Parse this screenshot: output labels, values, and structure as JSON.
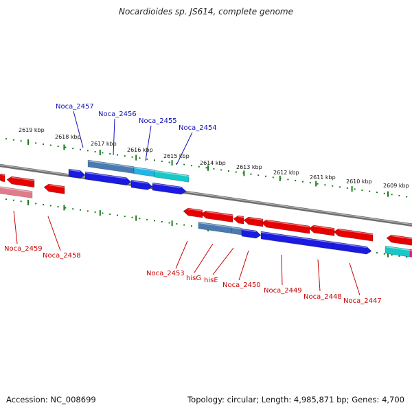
{
  "title": "Nocardioides sp. JS614, complete genome",
  "footer": {
    "accession": "Accession: NC_008699",
    "summary": "Topology: circular; Length: 4,985,871 bp; Genes: 4,700"
  },
  "colors": {
    "forward_gene": "#1a1ae0",
    "reverse_gene": "#e60000",
    "backbone": "#888888",
    "tick": "#1a7a1a",
    "label_forward": "#1010b4",
    "label_reverse": "#c80000"
  },
  "kbp_labels": [
    "2619 kbp",
    "2618 kbp",
    "2617 kbp",
    "2616 kbp",
    "2615 kbp",
    "2614 kbp",
    "2613 kbp",
    "2612 kbp",
    "2611 kbp",
    "2610 kbp",
    "2609 kbp"
  ],
  "forward_gene_labels": [
    "Noca_2457",
    "Noca_2456",
    "Noca_2455",
    "Noca_2454"
  ],
  "reverse_gene_labels": [
    "Noca_2459",
    "Noca_2458",
    "Noca_2453",
    "hisG",
    "hisE",
    "Noca_2450",
    "Noca_2449",
    "Noca_2448",
    "Noca_2447"
  ]
}
